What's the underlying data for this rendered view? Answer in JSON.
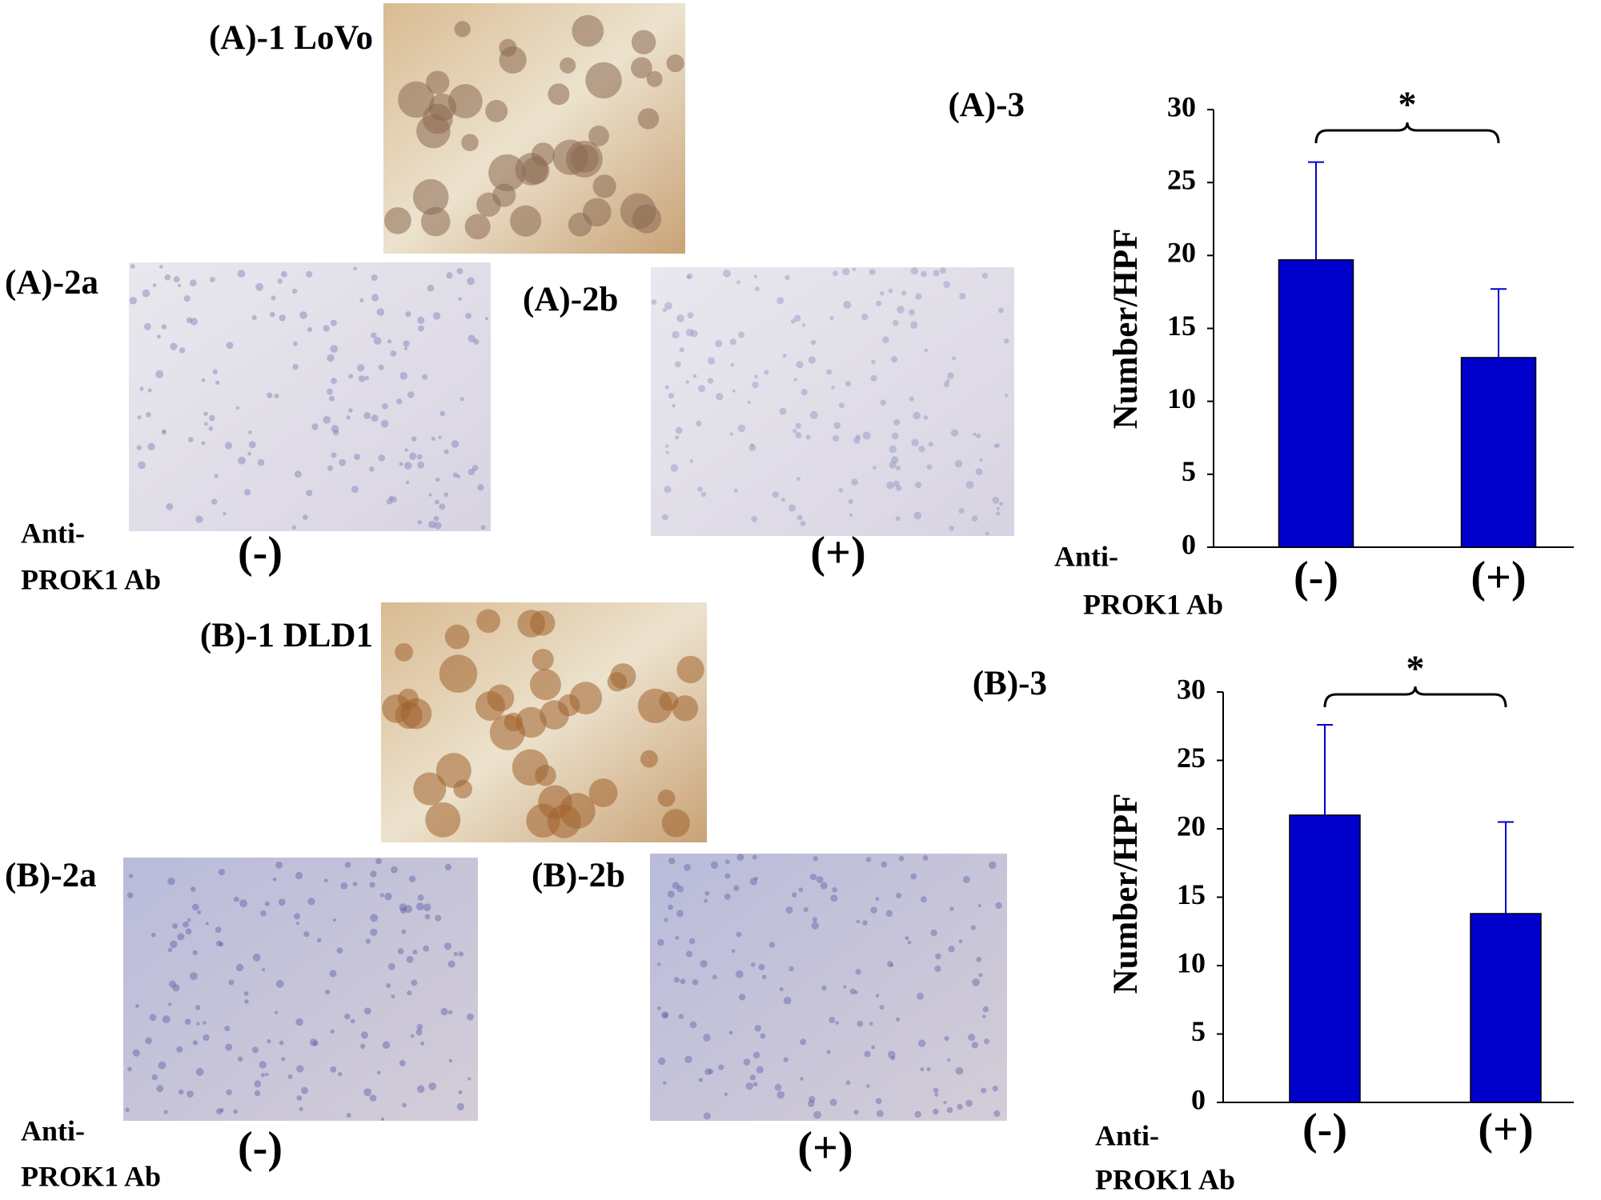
{
  "micrographs": [
    {
      "label": "(A)-1 LoVo"
    },
    {
      "label": "(A)-2a"
    },
    {
      "label": "(A)-2b"
    },
    {
      "label": "(B)-1 DLD1"
    },
    {
      "label": "(B)-2a"
    },
    {
      "label": "(B)-2b"
    }
  ],
  "captions": [
    {
      "lines": [
        "Anti-",
        "PROK1 Ab"
      ],
      "left": "(-)",
      "right": "(+)"
    },
    {
      "lines": [
        "Anti-",
        "PROK1 Ab"
      ],
      "left": "(-)",
      "right": "(+)"
    }
  ],
  "chart_data": [
    {
      "type": "bar",
      "title": "(A)-3",
      "ylabel": "Number/HPF",
      "xlabel": [
        "Anti-",
        "PROK1 Ab"
      ],
      "categories": [
        "(-)",
        "(+)"
      ],
      "values": [
        19.7,
        13.0
      ],
      "errors": [
        6.7,
        4.7
      ],
      "color": "#0000cc",
      "error_color": "#0000cc",
      "annotation": "*",
      "ylim": [
        0,
        30
      ],
      "yticks": [
        0,
        5,
        10,
        15,
        20,
        25,
        30
      ]
    },
    {
      "type": "bar",
      "title": "(B)-3",
      "ylabel": "Number/HPF",
      "xlabel": [
        "Anti-",
        "PROK1 Ab"
      ],
      "categories": [
        "(-)",
        "(+)"
      ],
      "values": [
        21.0,
        13.8
      ],
      "errors": [
        6.6,
        6.7
      ],
      "color": "#0000cc",
      "error_color": "#0000cc",
      "annotation": "*",
      "ylim": [
        0,
        30
      ],
      "yticks": [
        0,
        5,
        10,
        15,
        20,
        25,
        30
      ]
    }
  ]
}
